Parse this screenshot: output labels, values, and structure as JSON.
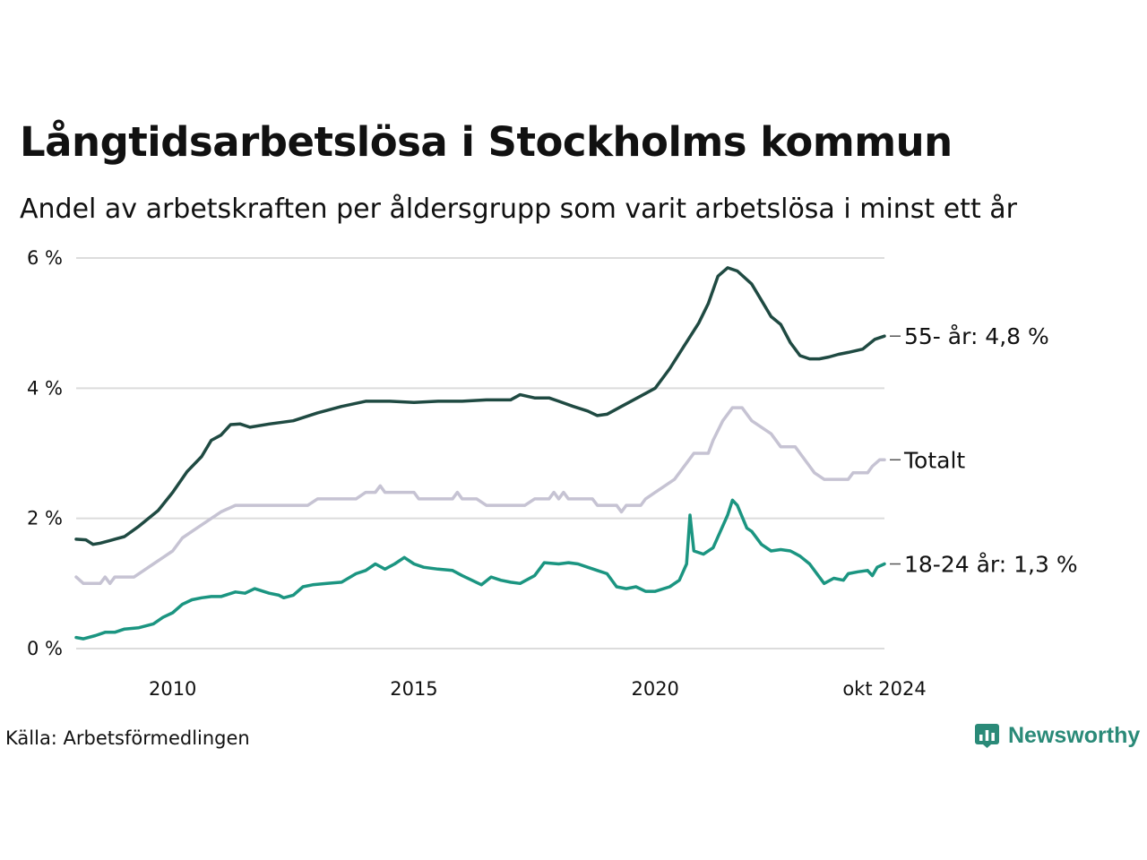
{
  "header": {
    "title": "Långtidsarbetslösa i Stockholms kommun",
    "subtitle": "Andel av arbetskraften per åldersgrupp som varit arbetslösa i minst ett år"
  },
  "footer": {
    "source": "Källa: Arbetsförmedlingen",
    "brand": "Newsworthy"
  },
  "colors": {
    "older": "#1f4a42",
    "total": "#c6c3d3",
    "young": "#1b9581",
    "grid": "#dcdcdc",
    "brand": "#2a8a78"
  },
  "chart_data": {
    "type": "line",
    "title": "Långtidsarbetslösa i Stockholms kommun",
    "subtitle": "Andel av arbetskraften per åldersgrupp som varit arbetslösa i minst ett år",
    "xlabel": "",
    "ylabel": "",
    "x_range": [
      2008.0,
      2024.75
    ],
    "ylim": [
      0,
      6
    ],
    "grid": true,
    "legend": "end-of-line labels",
    "y_ticks": [
      {
        "value": 0,
        "label": "0 %"
      },
      {
        "value": 2,
        "label": "2 %"
      },
      {
        "value": 4,
        "label": "4 %"
      },
      {
        "value": 6,
        "label": "6 %"
      }
    ],
    "x_ticks": [
      {
        "value": 2010,
        "label": "2010"
      },
      {
        "value": 2015,
        "label": "2015"
      },
      {
        "value": 2020,
        "label": "2020"
      },
      {
        "value": 2024.75,
        "label": "okt 2024"
      }
    ],
    "series": [
      {
        "name": "55- år",
        "label": "55- år: 4,8 %",
        "color_key": "older",
        "points": [
          [
            2008.0,
            1.68
          ],
          [
            2008.2,
            1.67
          ],
          [
            2008.35,
            1.6
          ],
          [
            2008.5,
            1.62
          ],
          [
            2008.7,
            1.66
          ],
          [
            2009.0,
            1.72
          ],
          [
            2009.3,
            1.88
          ],
          [
            2009.7,
            2.12
          ],
          [
            2010.0,
            2.4
          ],
          [
            2010.3,
            2.72
          ],
          [
            2010.6,
            2.95
          ],
          [
            2010.8,
            3.2
          ],
          [
            2011.0,
            3.28
          ],
          [
            2011.2,
            3.44
          ],
          [
            2011.4,
            3.45
          ],
          [
            2011.6,
            3.4
          ],
          [
            2012.0,
            3.45
          ],
          [
            2012.5,
            3.5
          ],
          [
            2013.0,
            3.62
          ],
          [
            2013.5,
            3.72
          ],
          [
            2014.0,
            3.8
          ],
          [
            2014.5,
            3.8
          ],
          [
            2015.0,
            3.78
          ],
          [
            2015.5,
            3.8
          ],
          [
            2016.0,
            3.8
          ],
          [
            2016.5,
            3.82
          ],
          [
            2016.8,
            3.82
          ],
          [
            2017.0,
            3.82
          ],
          [
            2017.2,
            3.9
          ],
          [
            2017.5,
            3.85
          ],
          [
            2017.8,
            3.85
          ],
          [
            2018.0,
            3.8
          ],
          [
            2018.3,
            3.72
          ],
          [
            2018.6,
            3.65
          ],
          [
            2018.8,
            3.58
          ],
          [
            2019.0,
            3.6
          ],
          [
            2019.3,
            3.72
          ],
          [
            2019.7,
            3.88
          ],
          [
            2020.0,
            4.0
          ],
          [
            2020.3,
            4.3
          ],
          [
            2020.6,
            4.65
          ],
          [
            2020.9,
            5.0
          ],
          [
            2021.1,
            5.3
          ],
          [
            2021.3,
            5.72
          ],
          [
            2021.5,
            5.85
          ],
          [
            2021.7,
            5.8
          ],
          [
            2022.0,
            5.6
          ],
          [
            2022.2,
            5.35
          ],
          [
            2022.4,
            5.1
          ],
          [
            2022.6,
            4.98
          ],
          [
            2022.8,
            4.7
          ],
          [
            2023.0,
            4.5
          ],
          [
            2023.2,
            4.45
          ],
          [
            2023.4,
            4.45
          ],
          [
            2023.6,
            4.48
          ],
          [
            2023.8,
            4.52
          ],
          [
            2024.0,
            4.55
          ],
          [
            2024.3,
            4.6
          ],
          [
            2024.55,
            4.75
          ],
          [
            2024.75,
            4.8
          ]
        ]
      },
      {
        "name": "Totalt",
        "label": "Totalt",
        "color_key": "total",
        "points": [
          [
            2008.0,
            1.1
          ],
          [
            2008.15,
            1.0
          ],
          [
            2008.5,
            1.0
          ],
          [
            2008.6,
            1.1
          ],
          [
            2008.7,
            1.0
          ],
          [
            2008.8,
            1.1
          ],
          [
            2009.2,
            1.1
          ],
          [
            2009.4,
            1.2
          ],
          [
            2009.6,
            1.3
          ],
          [
            2009.8,
            1.4
          ],
          [
            2010.0,
            1.5
          ],
          [
            2010.2,
            1.7
          ],
          [
            2010.4,
            1.8
          ],
          [
            2010.6,
            1.9
          ],
          [
            2010.8,
            2.0
          ],
          [
            2011.0,
            2.1
          ],
          [
            2011.3,
            2.2
          ],
          [
            2012.0,
            2.2
          ],
          [
            2012.8,
            2.2
          ],
          [
            2013.0,
            2.3
          ],
          [
            2013.8,
            2.3
          ],
          [
            2014.0,
            2.4
          ],
          [
            2014.2,
            2.4
          ],
          [
            2014.3,
            2.5
          ],
          [
            2014.4,
            2.4
          ],
          [
            2015.0,
            2.4
          ],
          [
            2015.1,
            2.3
          ],
          [
            2015.8,
            2.3
          ],
          [
            2015.9,
            2.4
          ],
          [
            2016.0,
            2.3
          ],
          [
            2016.3,
            2.3
          ],
          [
            2016.5,
            2.2
          ],
          [
            2017.3,
            2.2
          ],
          [
            2017.5,
            2.3
          ],
          [
            2017.8,
            2.3
          ],
          [
            2017.9,
            2.4
          ],
          [
            2018.0,
            2.3
          ],
          [
            2018.1,
            2.4
          ],
          [
            2018.2,
            2.3
          ],
          [
            2018.7,
            2.3
          ],
          [
            2018.8,
            2.2
          ],
          [
            2019.2,
            2.2
          ],
          [
            2019.3,
            2.1
          ],
          [
            2019.4,
            2.2
          ],
          [
            2019.7,
            2.2
          ],
          [
            2019.8,
            2.3
          ],
          [
            2020.0,
            2.4
          ],
          [
            2020.2,
            2.5
          ],
          [
            2020.4,
            2.6
          ],
          [
            2020.7,
            2.9
          ],
          [
            2020.8,
            3.0
          ],
          [
            2021.1,
            3.0
          ],
          [
            2021.2,
            3.2
          ],
          [
            2021.4,
            3.5
          ],
          [
            2021.5,
            3.6
          ],
          [
            2021.6,
            3.7
          ],
          [
            2021.8,
            3.7
          ],
          [
            2021.9,
            3.6
          ],
          [
            2022.0,
            3.5
          ],
          [
            2022.2,
            3.4
          ],
          [
            2022.4,
            3.3
          ],
          [
            2022.6,
            3.1
          ],
          [
            2022.9,
            3.1
          ],
          [
            2023.0,
            3.0
          ],
          [
            2023.2,
            2.8
          ],
          [
            2023.3,
            2.7
          ],
          [
            2023.5,
            2.6
          ],
          [
            2024.0,
            2.6
          ],
          [
            2024.1,
            2.7
          ],
          [
            2024.4,
            2.7
          ],
          [
            2024.5,
            2.8
          ],
          [
            2024.65,
            2.9
          ],
          [
            2024.75,
            2.9
          ]
        ]
      },
      {
        "name": "18-24 år",
        "label": "18-24 år: 1,3 %",
        "color_key": "young",
        "points": [
          [
            2008.0,
            0.17
          ],
          [
            2008.15,
            0.15
          ],
          [
            2008.4,
            0.2
          ],
          [
            2008.6,
            0.25
          ],
          [
            2008.8,
            0.25
          ],
          [
            2009.0,
            0.3
          ],
          [
            2009.3,
            0.32
          ],
          [
            2009.6,
            0.38
          ],
          [
            2009.8,
            0.48
          ],
          [
            2010.0,
            0.55
          ],
          [
            2010.2,
            0.68
          ],
          [
            2010.4,
            0.75
          ],
          [
            2010.6,
            0.78
          ],
          [
            2010.8,
            0.8
          ],
          [
            2011.0,
            0.8
          ],
          [
            2011.3,
            0.87
          ],
          [
            2011.5,
            0.85
          ],
          [
            2011.7,
            0.92
          ],
          [
            2012.0,
            0.85
          ],
          [
            2012.2,
            0.82
          ],
          [
            2012.3,
            0.78
          ],
          [
            2012.5,
            0.82
          ],
          [
            2012.7,
            0.95
          ],
          [
            2012.9,
            0.98
          ],
          [
            2013.2,
            1.0
          ],
          [
            2013.5,
            1.02
          ],
          [
            2013.8,
            1.15
          ],
          [
            2014.0,
            1.2
          ],
          [
            2014.2,
            1.3
          ],
          [
            2014.4,
            1.22
          ],
          [
            2014.6,
            1.3
          ],
          [
            2014.8,
            1.4
          ],
          [
            2015.0,
            1.3
          ],
          [
            2015.2,
            1.25
          ],
          [
            2015.5,
            1.22
          ],
          [
            2015.8,
            1.2
          ],
          [
            2016.0,
            1.12
          ],
          [
            2016.2,
            1.05
          ],
          [
            2016.4,
            0.98
          ],
          [
            2016.6,
            1.1
          ],
          [
            2016.8,
            1.05
          ],
          [
            2017.0,
            1.02
          ],
          [
            2017.2,
            1.0
          ],
          [
            2017.5,
            1.12
          ],
          [
            2017.7,
            1.32
          ],
          [
            2018.0,
            1.3
          ],
          [
            2018.2,
            1.32
          ],
          [
            2018.4,
            1.3
          ],
          [
            2018.6,
            1.25
          ],
          [
            2018.8,
            1.2
          ],
          [
            2019.0,
            1.15
          ],
          [
            2019.2,
            0.95
          ],
          [
            2019.4,
            0.92
          ],
          [
            2019.6,
            0.95
          ],
          [
            2019.8,
            0.88
          ],
          [
            2020.0,
            0.88
          ],
          [
            2020.3,
            0.95
          ],
          [
            2020.5,
            1.05
          ],
          [
            2020.65,
            1.3
          ],
          [
            2020.72,
            2.05
          ],
          [
            2020.8,
            1.5
          ],
          [
            2021.0,
            1.45
          ],
          [
            2021.2,
            1.55
          ],
          [
            2021.35,
            1.8
          ],
          [
            2021.5,
            2.05
          ],
          [
            2021.6,
            2.28
          ],
          [
            2021.7,
            2.2
          ],
          [
            2021.9,
            1.85
          ],
          [
            2022.0,
            1.8
          ],
          [
            2022.2,
            1.6
          ],
          [
            2022.4,
            1.5
          ],
          [
            2022.6,
            1.52
          ],
          [
            2022.8,
            1.5
          ],
          [
            2023.0,
            1.42
          ],
          [
            2023.2,
            1.3
          ],
          [
            2023.4,
            1.1
          ],
          [
            2023.5,
            1.0
          ],
          [
            2023.7,
            1.08
          ],
          [
            2023.9,
            1.05
          ],
          [
            2024.0,
            1.15
          ],
          [
            2024.2,
            1.18
          ],
          [
            2024.4,
            1.2
          ],
          [
            2024.5,
            1.12
          ],
          [
            2024.6,
            1.25
          ],
          [
            2024.75,
            1.3
          ]
        ]
      }
    ]
  }
}
